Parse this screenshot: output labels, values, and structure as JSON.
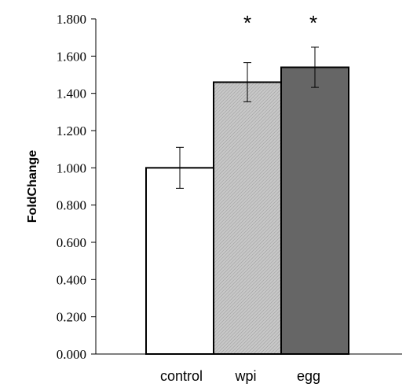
{
  "chart_data": {
    "type": "bar",
    "categories": [
      "control",
      "wpi",
      "egg"
    ],
    "values": [
      1.0,
      1.46,
      1.54
    ],
    "errors": [
      0.11,
      0.105,
      0.108
    ],
    "significance": [
      "",
      "*",
      "*"
    ],
    "title": "",
    "xlabel": "",
    "ylabel": "FoldChange",
    "ylim": [
      0,
      1.8
    ],
    "yticks": [
      "0.000",
      "0.200",
      "0.400",
      "0.600",
      "0.800",
      "1.000",
      "1.200",
      "1.400",
      "1.600",
      "1.800"
    ],
    "bar_fills": [
      "#ffffff",
      "hatch-light-gray",
      "#666666"
    ],
    "grid": false,
    "legend": "none"
  }
}
